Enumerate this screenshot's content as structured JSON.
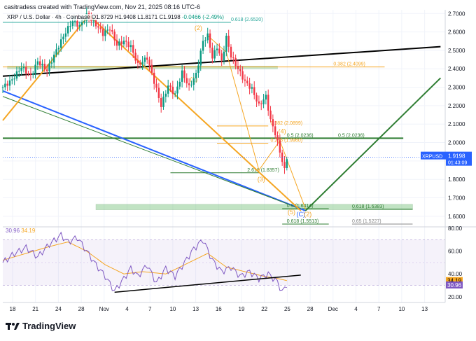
{
  "header": {
    "credit": "casitradess created with TradingView.com, Nov 21, 2025 08:16 UTC-6"
  },
  "legend": {
    "symbol": "XRP / U.S. Dollar · 4h · Coinbase",
    "open": "O1.8729",
    "high": "H1.9408",
    "low": "L1.8171",
    "close": "C1.9198",
    "change": "-0.0466 (-2.49%)"
  },
  "rsi_legend": {
    "rsi": "30.96",
    "ma": "34.19"
  },
  "footer": {
    "brand": "TradingView"
  },
  "colors": {
    "up": "#089981",
    "down": "#f23645",
    "orange": "#f5a623",
    "green": "#2e7d32",
    "blue": "#2962ff",
    "rsi": "#7e57c2"
  },
  "chart_data": [
    {
      "type": "candlestick",
      "symbol": "XRPUSD",
      "timeframe": "4h",
      "ylim": [
        1.55,
        2.72
      ],
      "yticks": [
        "2.7000",
        "2.6000",
        "2.5000",
        "2.4000",
        "2.3000",
        "2.2000",
        "2.1000",
        "2.0000",
        "1.9000",
        "1.8000",
        "1.7000",
        "1.6000"
      ],
      "x_ticks": [
        "18",
        "21",
        "24",
        "28",
        "Nov",
        "4",
        "7",
        "10",
        "13",
        "16",
        "19",
        "22",
        "25",
        "28",
        "Dec",
        "4",
        "7",
        "10",
        "13"
      ],
      "last_price": {
        "label": "XRPUSD",
        "value": "1.9198",
        "countdown": "01:43:09"
      },
      "price_path": [
        [
          0,
          2.3
        ],
        [
          4,
          2.34
        ],
        [
          8,
          2.41
        ],
        [
          12,
          2.36
        ],
        [
          15,
          2.44
        ],
        [
          19,
          2.39
        ],
        [
          23,
          2.5
        ],
        [
          27,
          2.6
        ],
        [
          30,
          2.66
        ],
        [
          33,
          2.63
        ],
        [
          36,
          2.69
        ],
        [
          40,
          2.64
        ],
        [
          43,
          2.59
        ],
        [
          46,
          2.62
        ],
        [
          49,
          2.53
        ],
        [
          52,
          2.55
        ],
        [
          55,
          2.52
        ],
        [
          58,
          2.42
        ],
        [
          62,
          2.46
        ],
        [
          65,
          2.33
        ],
        [
          68,
          2.2
        ],
        [
          71,
          2.31
        ],
        [
          74,
          2.26
        ],
        [
          77,
          2.38
        ],
        [
          80,
          2.3
        ],
        [
          83,
          2.37
        ],
        [
          86,
          2.55
        ],
        [
          88,
          2.58
        ],
        [
          90,
          2.46
        ],
        [
          92,
          2.52
        ],
        [
          94,
          2.44
        ],
        [
          96,
          2.57
        ],
        [
          98,
          2.47
        ],
        [
          101,
          2.4
        ],
        [
          104,
          2.33
        ],
        [
          107,
          2.29
        ],
        [
          110,
          2.2
        ],
        [
          113,
          2.25
        ],
        [
          115,
          2.12
        ],
        [
          117,
          2.05
        ],
        [
          119,
          1.95
        ],
        [
          121,
          1.85
        ],
        [
          122,
          1.92
        ]
      ],
      "levels": [
        {
          "label": "0.618 (2.6520)",
          "value": 2.652,
          "color": "#26a69a"
        },
        {
          "label": "0.382 (2.4099)",
          "value": 2.4099,
          "color": "#f5a623"
        },
        {
          "label": "0.382 (2.0899)",
          "value": 2.0899,
          "color": "#f5a623"
        },
        {
          "label": "0.5 (2.0236)",
          "value": 2.0236,
          "color": "#2e7d32"
        },
        {
          "label": "0.5 (2.0236)",
          "value": 2.0236,
          "color": "#2e7d32"
        },
        {
          "label": "0.236 (1.9960)",
          "value": 1.996,
          "color": "#f5a623"
        },
        {
          "label": "2.618 (1.8357)",
          "value": 1.8357,
          "color": "#2e7d32"
        },
        {
          "label": "0.5 (1.6414)",
          "value": 1.6414,
          "color": "#2e7d32"
        },
        {
          "label": "0.618 (1.6383)",
          "value": 1.6383,
          "color": "#2e7d32"
        },
        {
          "label": "0.618 (1.5513)",
          "value": 1.5513,
          "color": "#2e7d32"
        },
        {
          "label": "0.65 (1.5227)",
          "value": 1.5227,
          "color": "#888888"
        }
      ],
      "wave_labels": [
        "(2)",
        "(1)",
        "(3)",
        "(4)",
        "(5)",
        "(C)",
        "(2)"
      ]
    },
    {
      "type": "line",
      "name": "RSI",
      "ylim": [
        15,
        80
      ],
      "yticks": [
        "80.00",
        "60.00",
        "40.00",
        "20.00"
      ],
      "bands": [
        30,
        70
      ],
      "rsi_value": "30.96",
      "ma_value": "34.19",
      "rsi_path": [
        [
          0,
          50
        ],
        [
          5,
          58
        ],
        [
          10,
          63
        ],
        [
          15,
          55
        ],
        [
          20,
          66
        ],
        [
          25,
          74
        ],
        [
          28,
          68
        ],
        [
          32,
          72
        ],
        [
          36,
          60
        ],
        [
          40,
          48
        ],
        [
          44,
          38
        ],
        [
          48,
          25
        ],
        [
          52,
          36
        ],
        [
          55,
          45
        ],
        [
          58,
          38
        ],
        [
          62,
          48
        ],
        [
          66,
          32
        ],
        [
          70,
          45
        ],
        [
          74,
          38
        ],
        [
          78,
          50
        ],
        [
          82,
          62
        ],
        [
          86,
          70
        ],
        [
          90,
          52
        ],
        [
          94,
          42
        ],
        [
          98,
          46
        ],
        [
          102,
          38
        ],
        [
          106,
          42
        ],
        [
          110,
          36
        ],
        [
          114,
          40
        ],
        [
          118,
          33
        ],
        [
          120,
          24
        ],
        [
          122,
          31
        ]
      ],
      "ma_path": [
        [
          0,
          52
        ],
        [
          10,
          58
        ],
        [
          20,
          64
        ],
        [
          28,
          68
        ],
        [
          36,
          60
        ],
        [
          44,
          48
        ],
        [
          52,
          40
        ],
        [
          60,
          42
        ],
        [
          70,
          40
        ],
        [
          80,
          50
        ],
        [
          88,
          58
        ],
        [
          96,
          46
        ],
        [
          104,
          42
        ],
        [
          112,
          38
        ],
        [
          118,
          36
        ],
        [
          122,
          34.2
        ]
      ]
    }
  ]
}
